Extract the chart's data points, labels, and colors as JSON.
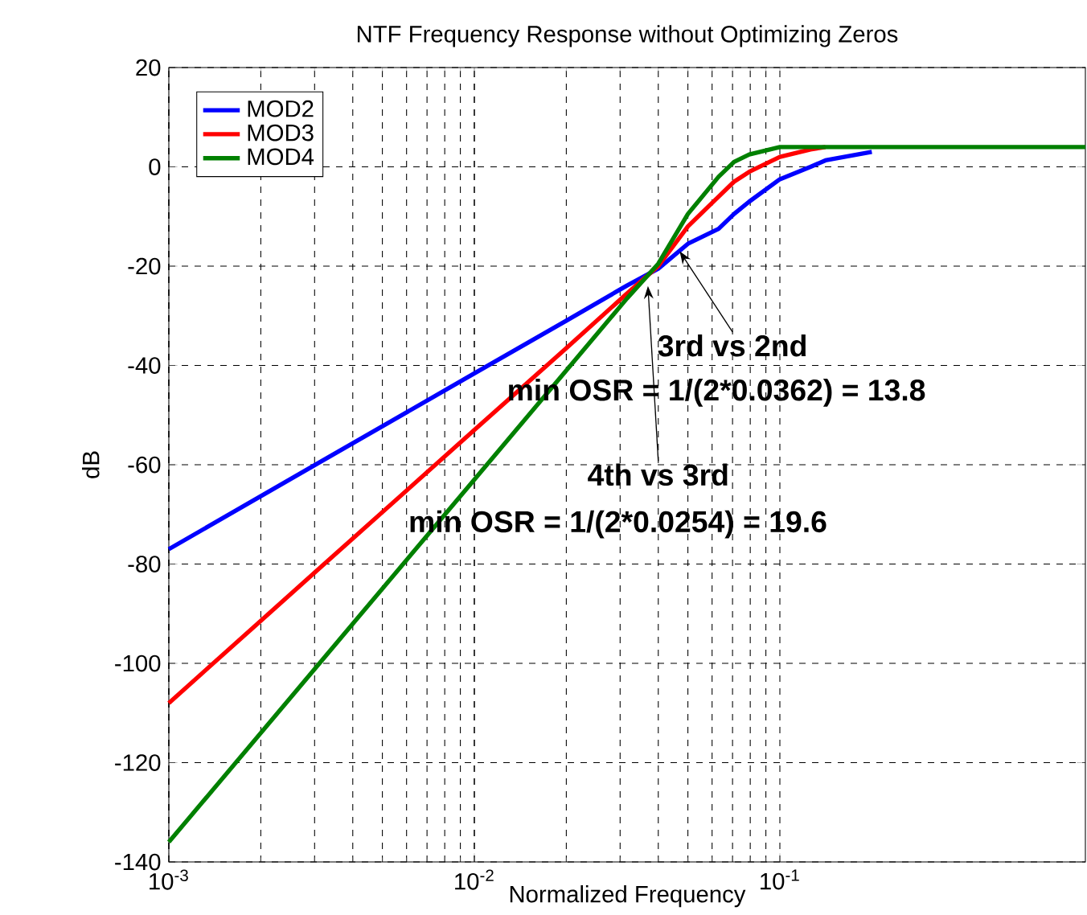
{
  "chart_data": {
    "type": "line",
    "title": "NTF Frequency Response without Optimizing Zeros",
    "xlabel": "Normalized Frequency",
    "ylabel": "dB",
    "x": [
      0.001,
      0.00316,
      0.01,
      0.02,
      0.0316,
      0.04,
      0.05,
      0.063,
      0.0708,
      0.0794,
      0.1,
      0.126,
      0.141,
      0.2,
      0.316,
      0.5,
      1
    ],
    "series": [
      {
        "name": "MOD2",
        "color": "#0000ff",
        "values": [
          -77,
          -59.3,
          -41.6,
          -31,
          -23.9,
          -20.5,
          -15.5,
          -12.5,
          -9.5,
          -7,
          -2.5,
          0,
          1.3,
          3,
          null,
          null,
          null
        ]
      },
      {
        "name": "MOD3",
        "color": "#ff0000",
        "values": [
          -108,
          -80.5,
          -53,
          -36.5,
          -25.5,
          -20,
          -12,
          -6,
          -3,
          -1,
          2,
          3.5,
          4,
          null,
          null,
          null,
          null
        ]
      },
      {
        "name": "MOD4",
        "color": "#008000",
        "values": [
          -136,
          -99.5,
          -63,
          -41,
          -26.5,
          -19.5,
          -9.5,
          -2,
          1,
          2.5,
          4,
          4,
          4,
          4,
          4,
          4,
          4
        ]
      }
    ],
    "annotations": [
      {
        "text": "3rd vs 2nd",
        "x": 0.047,
        "y": -17
      },
      "min OSR = 1/(2*0.0362) = 13.8",
      {
        "text": "4th vs 3rd",
        "x": 0.037,
        "y": -24
      },
      "min OSR = 1/(2*0.0254) = 19.6"
    ],
    "log": "x",
    "xlim": [
      0.001,
      1
    ],
    "ylim": [
      -140,
      20
    ],
    "xticks": [
      {
        "value": 0.001,
        "label": "10$^{-3}$"
      },
      {
        "value": 0.01,
        "label": "10$^{-2}$"
      },
      {
        "value": 0.1,
        "label": "10$^{-1}$"
      }
    ],
    "yticks": [
      -140,
      -120,
      -100,
      -80,
      -60,
      -40,
      -20,
      0,
      20
    ],
    "grid": true,
    "legend": "top left",
    "line_style": "solid"
  }
}
